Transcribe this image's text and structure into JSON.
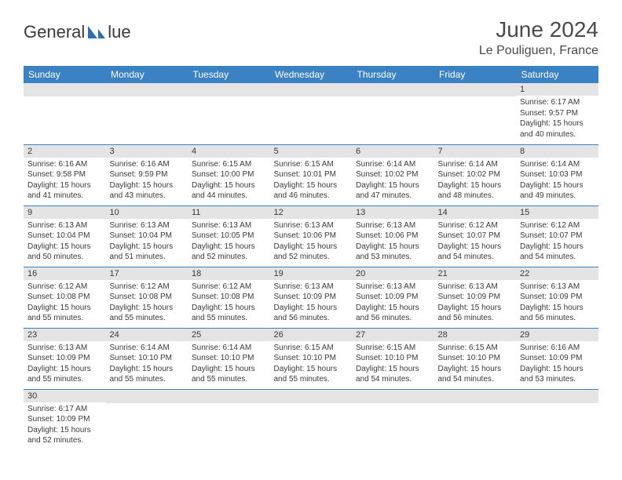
{
  "logo": {
    "text_left": "General",
    "text_right": "lue",
    "brand_color": "#2f6fb0"
  },
  "header": {
    "month_title": "June 2024",
    "location": "Le Pouliguen, France"
  },
  "day_headers": [
    "Sunday",
    "Monday",
    "Tuesday",
    "Wednesday",
    "Thursday",
    "Friday",
    "Saturday"
  ],
  "colors": {
    "header_bg": "#3b82c4",
    "header_text": "#ffffff",
    "dayhead_bg": "#e4e4e4",
    "cell_border": "#3b82c4",
    "text": "#3a3a3a"
  },
  "fonts": {
    "title_pt": 28,
    "location_pt": 16,
    "th_pt": 12,
    "dayhead_pt": 11,
    "body_pt": 10
  },
  "weeks": [
    [
      {
        "n": "",
        "sunrise": "",
        "sunset": "",
        "daylight": ""
      },
      {
        "n": "",
        "sunrise": "",
        "sunset": "",
        "daylight": ""
      },
      {
        "n": "",
        "sunrise": "",
        "sunset": "",
        "daylight": ""
      },
      {
        "n": "",
        "sunrise": "",
        "sunset": "",
        "daylight": ""
      },
      {
        "n": "",
        "sunrise": "",
        "sunset": "",
        "daylight": ""
      },
      {
        "n": "",
        "sunrise": "",
        "sunset": "",
        "daylight": ""
      },
      {
        "n": "1",
        "sunrise": "Sunrise: 6:17 AM",
        "sunset": "Sunset: 9:57 PM",
        "daylight": "Daylight: 15 hours and 40 minutes."
      }
    ],
    [
      {
        "n": "2",
        "sunrise": "Sunrise: 6:16 AM",
        "sunset": "Sunset: 9:58 PM",
        "daylight": "Daylight: 15 hours and 41 minutes."
      },
      {
        "n": "3",
        "sunrise": "Sunrise: 6:16 AM",
        "sunset": "Sunset: 9:59 PM",
        "daylight": "Daylight: 15 hours and 43 minutes."
      },
      {
        "n": "4",
        "sunrise": "Sunrise: 6:15 AM",
        "sunset": "Sunset: 10:00 PM",
        "daylight": "Daylight: 15 hours and 44 minutes."
      },
      {
        "n": "5",
        "sunrise": "Sunrise: 6:15 AM",
        "sunset": "Sunset: 10:01 PM",
        "daylight": "Daylight: 15 hours and 46 minutes."
      },
      {
        "n": "6",
        "sunrise": "Sunrise: 6:14 AM",
        "sunset": "Sunset: 10:02 PM",
        "daylight": "Daylight: 15 hours and 47 minutes."
      },
      {
        "n": "7",
        "sunrise": "Sunrise: 6:14 AM",
        "sunset": "Sunset: 10:02 PM",
        "daylight": "Daylight: 15 hours and 48 minutes."
      },
      {
        "n": "8",
        "sunrise": "Sunrise: 6:14 AM",
        "sunset": "Sunset: 10:03 PM",
        "daylight": "Daylight: 15 hours and 49 minutes."
      }
    ],
    [
      {
        "n": "9",
        "sunrise": "Sunrise: 6:13 AM",
        "sunset": "Sunset: 10:04 PM",
        "daylight": "Daylight: 15 hours and 50 minutes."
      },
      {
        "n": "10",
        "sunrise": "Sunrise: 6:13 AM",
        "sunset": "Sunset: 10:04 PM",
        "daylight": "Daylight: 15 hours and 51 minutes."
      },
      {
        "n": "11",
        "sunrise": "Sunrise: 6:13 AM",
        "sunset": "Sunset: 10:05 PM",
        "daylight": "Daylight: 15 hours and 52 minutes."
      },
      {
        "n": "12",
        "sunrise": "Sunrise: 6:13 AM",
        "sunset": "Sunset: 10:06 PM",
        "daylight": "Daylight: 15 hours and 52 minutes."
      },
      {
        "n": "13",
        "sunrise": "Sunrise: 6:13 AM",
        "sunset": "Sunset: 10:06 PM",
        "daylight": "Daylight: 15 hours and 53 minutes."
      },
      {
        "n": "14",
        "sunrise": "Sunrise: 6:12 AM",
        "sunset": "Sunset: 10:07 PM",
        "daylight": "Daylight: 15 hours and 54 minutes."
      },
      {
        "n": "15",
        "sunrise": "Sunrise: 6:12 AM",
        "sunset": "Sunset: 10:07 PM",
        "daylight": "Daylight: 15 hours and 54 minutes."
      }
    ],
    [
      {
        "n": "16",
        "sunrise": "Sunrise: 6:12 AM",
        "sunset": "Sunset: 10:08 PM",
        "daylight": "Daylight: 15 hours and 55 minutes."
      },
      {
        "n": "17",
        "sunrise": "Sunrise: 6:12 AM",
        "sunset": "Sunset: 10:08 PM",
        "daylight": "Daylight: 15 hours and 55 minutes."
      },
      {
        "n": "18",
        "sunrise": "Sunrise: 6:12 AM",
        "sunset": "Sunset: 10:08 PM",
        "daylight": "Daylight: 15 hours and 55 minutes."
      },
      {
        "n": "19",
        "sunrise": "Sunrise: 6:13 AM",
        "sunset": "Sunset: 10:09 PM",
        "daylight": "Daylight: 15 hours and 56 minutes."
      },
      {
        "n": "20",
        "sunrise": "Sunrise: 6:13 AM",
        "sunset": "Sunset: 10:09 PM",
        "daylight": "Daylight: 15 hours and 56 minutes."
      },
      {
        "n": "21",
        "sunrise": "Sunrise: 6:13 AM",
        "sunset": "Sunset: 10:09 PM",
        "daylight": "Daylight: 15 hours and 56 minutes."
      },
      {
        "n": "22",
        "sunrise": "Sunrise: 6:13 AM",
        "sunset": "Sunset: 10:09 PM",
        "daylight": "Daylight: 15 hours and 56 minutes."
      }
    ],
    [
      {
        "n": "23",
        "sunrise": "Sunrise: 6:13 AM",
        "sunset": "Sunset: 10:09 PM",
        "daylight": "Daylight: 15 hours and 55 minutes."
      },
      {
        "n": "24",
        "sunrise": "Sunrise: 6:14 AM",
        "sunset": "Sunset: 10:10 PM",
        "daylight": "Daylight: 15 hours and 55 minutes."
      },
      {
        "n": "25",
        "sunrise": "Sunrise: 6:14 AM",
        "sunset": "Sunset: 10:10 PM",
        "daylight": "Daylight: 15 hours and 55 minutes."
      },
      {
        "n": "26",
        "sunrise": "Sunrise: 6:15 AM",
        "sunset": "Sunset: 10:10 PM",
        "daylight": "Daylight: 15 hours and 55 minutes."
      },
      {
        "n": "27",
        "sunrise": "Sunrise: 6:15 AM",
        "sunset": "Sunset: 10:10 PM",
        "daylight": "Daylight: 15 hours and 54 minutes."
      },
      {
        "n": "28",
        "sunrise": "Sunrise: 6:15 AM",
        "sunset": "Sunset: 10:10 PM",
        "daylight": "Daylight: 15 hours and 54 minutes."
      },
      {
        "n": "29",
        "sunrise": "Sunrise: 6:16 AM",
        "sunset": "Sunset: 10:09 PM",
        "daylight": "Daylight: 15 hours and 53 minutes."
      }
    ],
    [
      {
        "n": "30",
        "sunrise": "Sunrise: 6:17 AM",
        "sunset": "Sunset: 10:09 PM",
        "daylight": "Daylight: 15 hours and 52 minutes."
      },
      {
        "n": "",
        "sunrise": "",
        "sunset": "",
        "daylight": ""
      },
      {
        "n": "",
        "sunrise": "",
        "sunset": "",
        "daylight": ""
      },
      {
        "n": "",
        "sunrise": "",
        "sunset": "",
        "daylight": ""
      },
      {
        "n": "",
        "sunrise": "",
        "sunset": "",
        "daylight": ""
      },
      {
        "n": "",
        "sunrise": "",
        "sunset": "",
        "daylight": ""
      },
      {
        "n": "",
        "sunrise": "",
        "sunset": "",
        "daylight": ""
      }
    ]
  ]
}
